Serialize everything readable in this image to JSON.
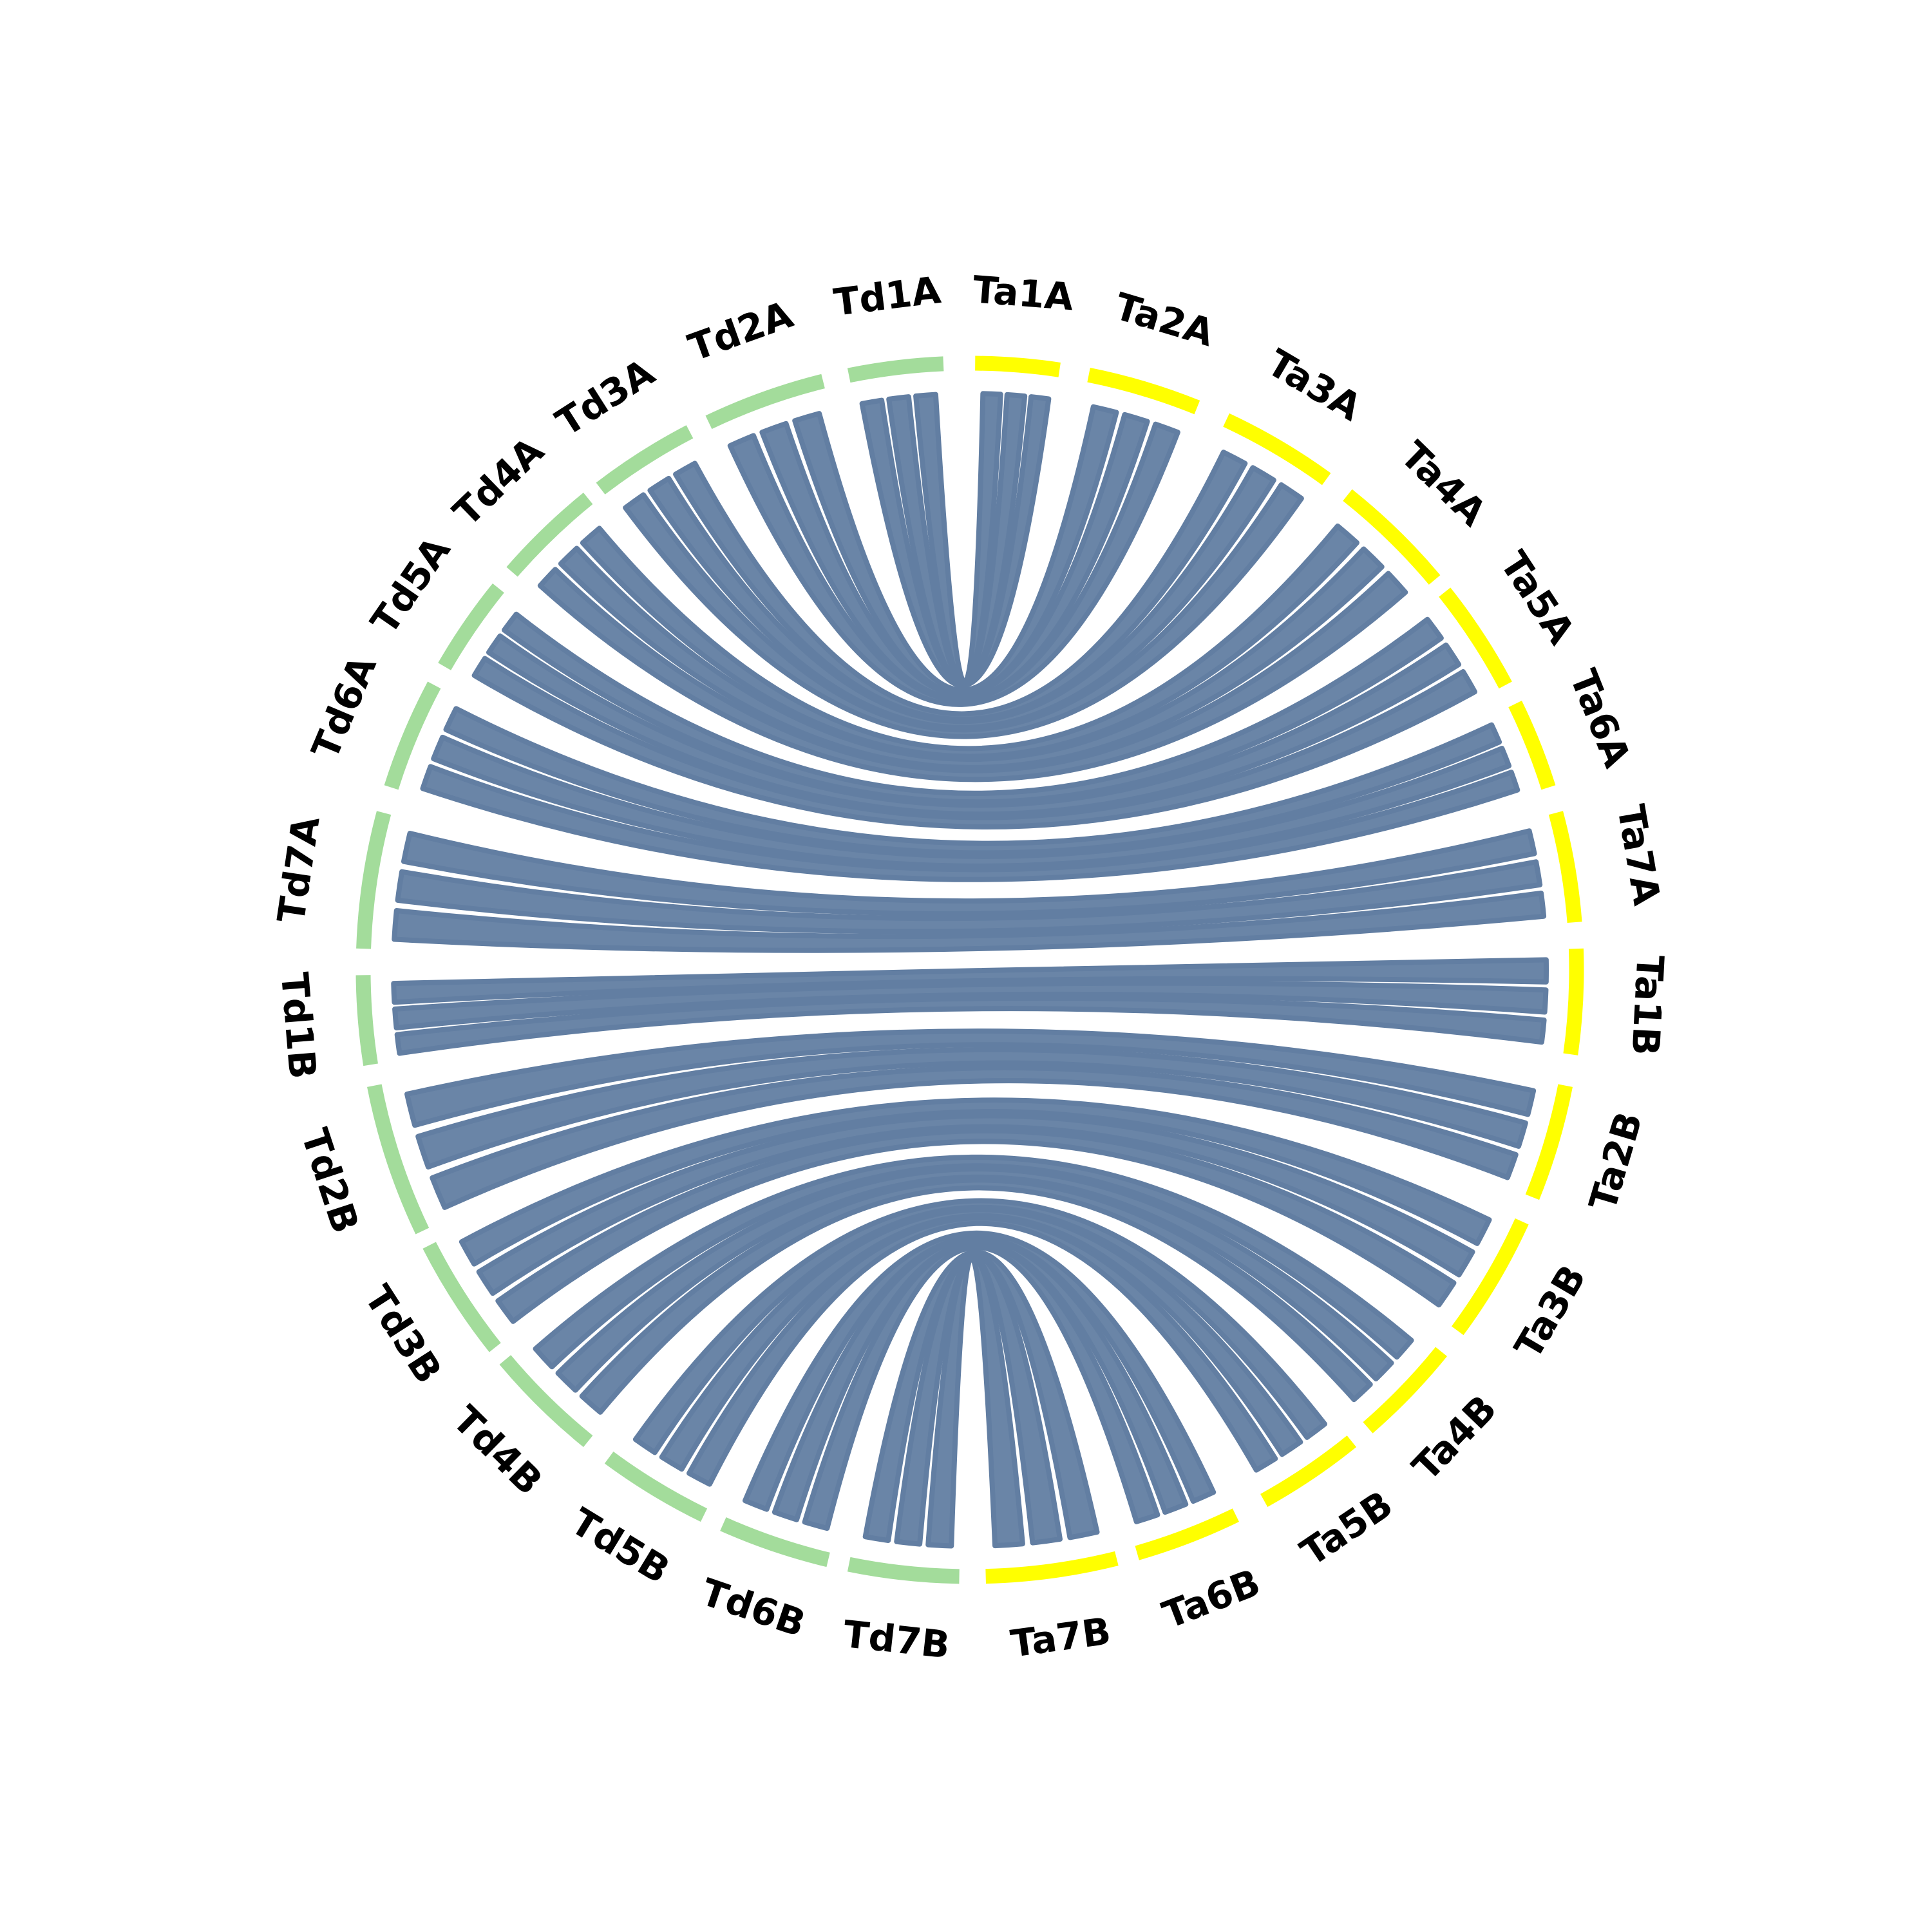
{
  "nodes": [
    {
      "label": "Ta1A",
      "color": "#ffff00"
    },
    {
      "label": "Ta2A",
      "color": "#ffff00"
    },
    {
      "label": "Ta3A",
      "color": "#ffff00"
    },
    {
      "label": "Ta4A",
      "color": "#ffff00"
    },
    {
      "label": "Ta5A",
      "color": "#ffff00"
    },
    {
      "label": "Ta6A",
      "color": "#ffff00"
    },
    {
      "label": "Ta7A",
      "color": "#ffff00"
    },
    {
      "label": "Ta1B",
      "color": "#ffff00"
    },
    {
      "label": "Ta2B",
      "color": "#ffff00"
    },
    {
      "label": "Ta3B",
      "color": "#ffff00"
    },
    {
      "label": "Ta4B",
      "color": "#ffff00"
    },
    {
      "label": "Ta5B",
      "color": "#ffff00"
    },
    {
      "label": "Ta6B",
      "color": "#ffff00"
    },
    {
      "label": "Ta7B",
      "color": "#ffff00"
    },
    {
      "label": "Td7B",
      "color": "#a3dc9b"
    },
    {
      "label": "Td6B",
      "color": "#a3dc9b"
    },
    {
      "label": "Td5B",
      "color": "#a3dc9b"
    },
    {
      "label": "Td4B",
      "color": "#a3dc9b"
    },
    {
      "label": "Td3B",
      "color": "#a3dc9b"
    },
    {
      "label": "Td2B",
      "color": "#a3dc9b"
    },
    {
      "label": "Td1B",
      "color": "#a3dc9b"
    },
    {
      "label": "Td7A",
      "color": "#a3dc9b"
    },
    {
      "label": "Td6A",
      "color": "#a3dc9b"
    },
    {
      "label": "Td5A",
      "color": "#a3dc9b"
    },
    {
      "label": "Td4A",
      "color": "#a3dc9b"
    },
    {
      "label": "Td3A",
      "color": "#a3dc9b"
    },
    {
      "label": "Td2A",
      "color": "#a3dc9b"
    },
    {
      "label": "Td1A",
      "color": "#a3dc9b"
    }
  ]
}
